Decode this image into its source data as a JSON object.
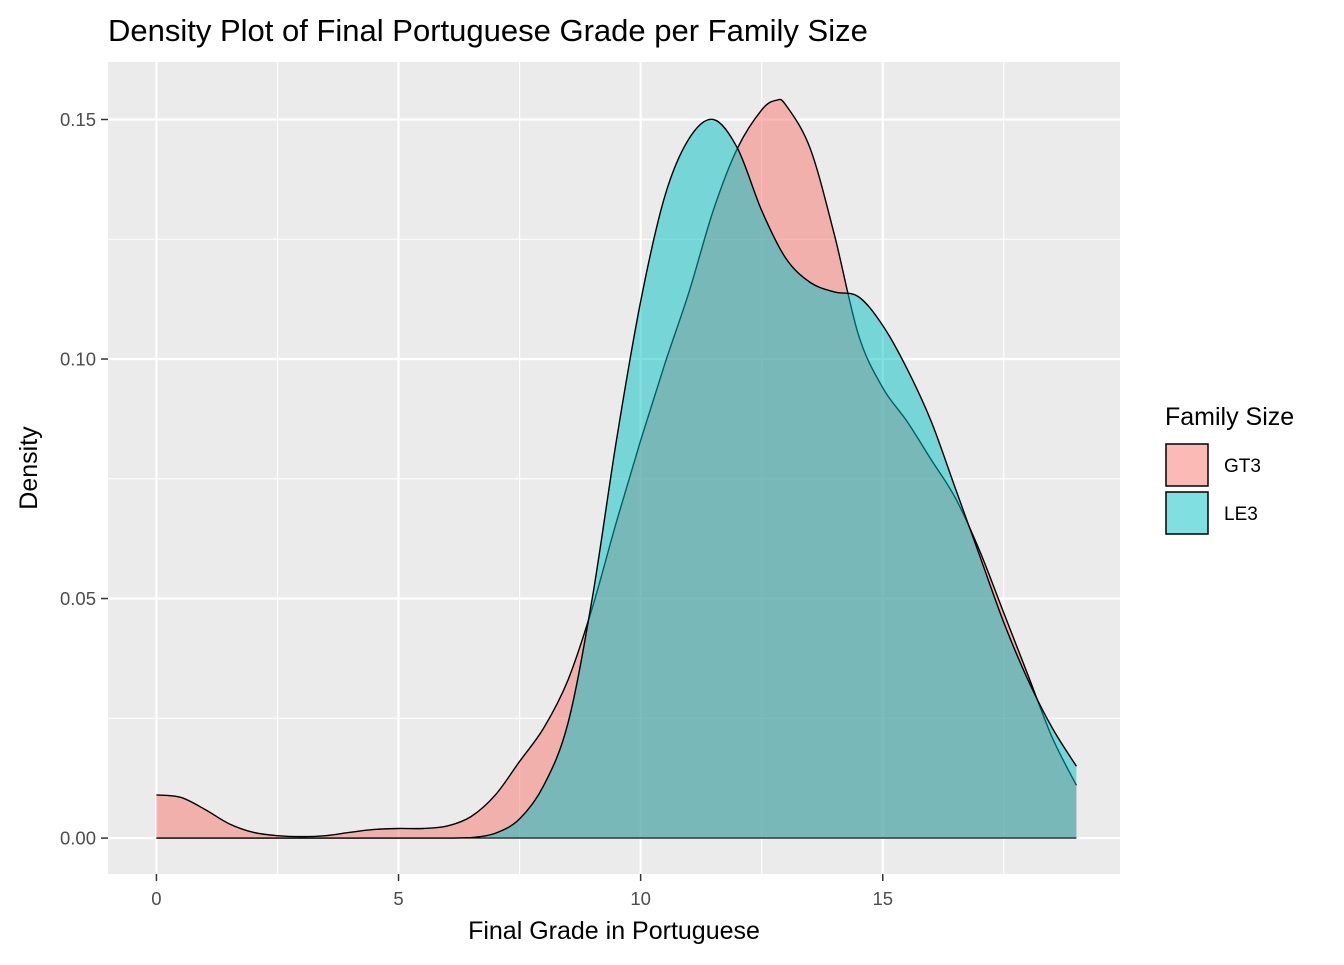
{
  "chart_data": {
    "type": "area",
    "chart_kind": "density",
    "title": "Density Plot of Final Portuguese Grade per Family Size",
    "xlabel": "Final Grade in Portuguese",
    "ylabel": "Density",
    "xlim": [
      -1,
      19.9
    ],
    "ylim": [
      -0.0075,
      0.162
    ],
    "x_ticks": [
      0,
      5,
      10,
      15
    ],
    "x_tick_labels": [
      "0",
      "5",
      "10",
      "15"
    ],
    "y_ticks": [
      0,
      0.05,
      0.1,
      0.15
    ],
    "y_tick_labels": [
      "0.00",
      "0.05",
      "0.10",
      "0.15"
    ],
    "grid": true,
    "legend": {
      "title": "Family Size",
      "position": "right"
    },
    "series": [
      {
        "name": "GT3",
        "color": "#F8766D",
        "x": [
          0,
          0.5,
          1,
          1.5,
          2,
          2.5,
          3,
          3.5,
          4,
          4.5,
          5,
          5.5,
          6,
          6.5,
          7,
          7.5,
          8,
          8.5,
          9,
          9.5,
          10,
          10.5,
          11,
          11.5,
          12,
          12.5,
          12.8,
          13,
          13.5,
          14,
          14.5,
          15,
          15.5,
          16,
          16.5,
          17,
          17.5,
          18,
          18.5,
          19
        ],
        "values": [
          0.009,
          0.0085,
          0.006,
          0.003,
          0.0012,
          0.0005,
          0.0003,
          0.0005,
          0.0012,
          0.0018,
          0.002,
          0.002,
          0.0025,
          0.0045,
          0.009,
          0.016,
          0.023,
          0.033,
          0.048,
          0.066,
          0.083,
          0.099,
          0.114,
          0.131,
          0.144,
          0.152,
          0.154,
          0.153,
          0.144,
          0.126,
          0.105,
          0.094,
          0.087,
          0.079,
          0.071,
          0.06,
          0.047,
          0.034,
          0.021,
          0.011
        ]
      },
      {
        "name": "LE3",
        "color": "#00BFC4",
        "x": [
          0,
          1,
          2,
          3,
          4,
          5,
          6,
          6.5,
          7,
          7.5,
          8,
          8.5,
          9,
          9.5,
          10,
          10.5,
          11,
          11.5,
          12,
          12.5,
          13,
          13.5,
          14,
          14.5,
          15,
          15.5,
          16,
          16.5,
          17,
          17.5,
          18,
          18.5,
          19
        ],
        "values": [
          0,
          0,
          0,
          0,
          0,
          0,
          0,
          0.0001,
          0.001,
          0.004,
          0.011,
          0.024,
          0.05,
          0.083,
          0.112,
          0.134,
          0.146,
          0.15,
          0.144,
          0.131,
          0.121,
          0.116,
          0.114,
          0.113,
          0.107,
          0.098,
          0.087,
          0.073,
          0.059,
          0.045,
          0.033,
          0.023,
          0.015
        ]
      }
    ]
  }
}
